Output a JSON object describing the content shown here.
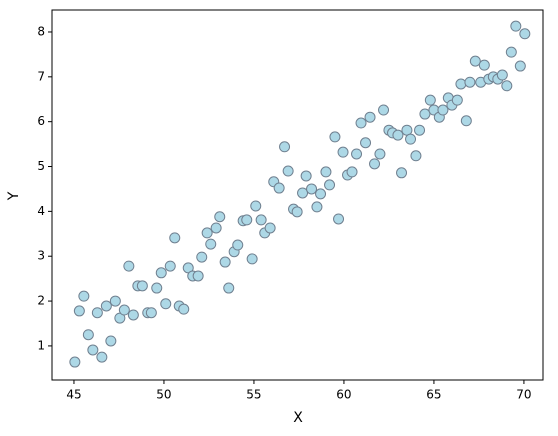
{
  "chart_data": {
    "type": "scatter",
    "x_label": "X",
    "y_label": "Y",
    "color": "#add8e6",
    "edge_color": "#708090",
    "xlim": [
      43.78,
      71.06
    ],
    "ylim": [
      0.24,
      8.49
    ],
    "xticks": [
      45,
      50,
      55,
      60,
      65,
      70
    ],
    "yticks": [
      1,
      2,
      3,
      4,
      5,
      6,
      7,
      8
    ],
    "grid": false,
    "x": [
      45.05,
      45.3,
      45.55,
      45.8,
      46.05,
      46.3,
      46.55,
      46.8,
      47.05,
      47.3,
      47.55,
      47.8,
      48.05,
      48.3,
      48.55,
      48.8,
      49.1,
      49.3,
      49.6,
      49.85,
      50.1,
      50.35,
      50.6,
      50.85,
      51.1,
      51.35,
      51.6,
      51.9,
      52.1,
      52.4,
      52.6,
      52.9,
      53.1,
      53.4,
      53.6,
      53.9,
      54.1,
      54.4,
      54.6,
      54.9,
      55.1,
      55.4,
      55.6,
      55.9,
      56.1,
      56.4,
      56.7,
      56.9,
      57.2,
      57.4,
      57.7,
      57.9,
      58.2,
      58.5,
      58.7,
      59.0,
      59.2,
      59.5,
      59.7,
      59.95,
      60.2,
      60.45,
      60.7,
      60.95,
      61.2,
      61.45,
      61.7,
      62.0,
      62.2,
      62.5,
      62.7,
      63.0,
      63.2,
      63.5,
      63.7,
      64.0,
      64.2,
      64.5,
      64.8,
      65.0,
      65.3,
      65.5,
      65.8,
      66.0,
      66.3,
      66.5,
      66.8,
      67.0,
      67.3,
      67.6,
      67.8,
      68.05,
      68.3,
      68.55,
      68.8,
      69.05,
      69.3,
      69.55,
      69.8,
      70.05
    ],
    "values": [
      0.64,
      1.78,
      2.11,
      1.25,
      0.91,
      1.74,
      0.75,
      1.89,
      1.11,
      2.0,
      1.62,
      1.8,
      2.78,
      1.69,
      2.34,
      2.34,
      1.74,
      1.74,
      2.29,
      2.63,
      1.94,
      2.78,
      3.41,
      1.89,
      1.82,
      2.74,
      2.56,
      2.56,
      2.98,
      3.52,
      3.27,
      3.63,
      3.88,
      2.87,
      2.29,
      3.1,
      3.25,
      3.79,
      3.81,
      2.94,
      4.12,
      3.81,
      3.52,
      3.63,
      4.66,
      4.52,
      5.44,
      4.9,
      4.05,
      3.99,
      4.41,
      4.79,
      4.5,
      4.1,
      4.39,
      4.88,
      4.59,
      5.66,
      3.83,
      5.32,
      4.81,
      4.88,
      5.28,
      5.97,
      5.53,
      6.1,
      5.06,
      5.28,
      6.26,
      5.81,
      5.75,
      5.7,
      4.86,
      5.81,
      5.61,
      5.24,
      5.81,
      6.17,
      6.48,
      6.26,
      6.1,
      6.26,
      6.53,
      6.37,
      6.48,
      6.84,
      6.02,
      6.88,
      7.35,
      6.88,
      7.26,
      6.95,
      7.0,
      6.95,
      7.04,
      6.8,
      7.55,
      8.13,
      7.24,
      7.96
    ]
  }
}
